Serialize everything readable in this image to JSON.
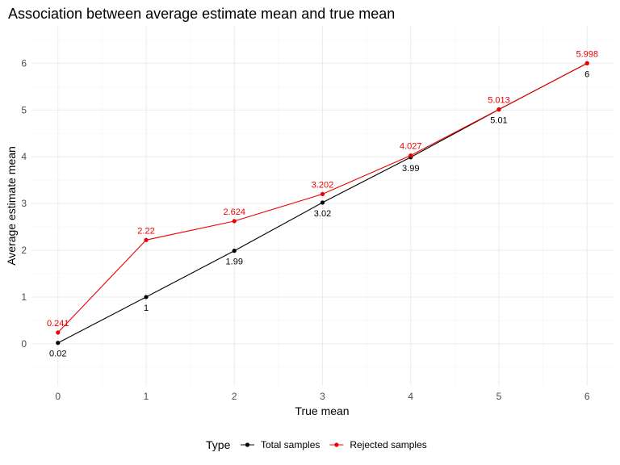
{
  "chart_data": {
    "type": "line",
    "title": "Association between average estimate mean and true mean",
    "xlabel": "True mean",
    "ylabel": "Average estimate mean",
    "x": [
      0,
      1,
      2,
      3,
      4,
      5,
      6
    ],
    "xlim": [
      -0.3,
      6.3
    ],
    "ylim": [
      -0.9,
      6.8
    ],
    "xticks": [
      "0",
      "1",
      "2",
      "3",
      "4",
      "5",
      "6"
    ],
    "yticks": [
      "0",
      "1",
      "2",
      "3",
      "4",
      "5",
      "6"
    ],
    "grid": true,
    "legend": {
      "title": "Type",
      "position": "bottom"
    },
    "series": [
      {
        "name": "Total samples",
        "color": "#000000",
        "values": [
          0.02,
          1,
          1.99,
          3.02,
          3.99,
          5.01,
          6
        ],
        "labels": [
          "0.02",
          "1",
          "1.99",
          "3.02",
          "3.99",
          "5.01",
          "6"
        ],
        "label_position": "below"
      },
      {
        "name": "Rejected samples",
        "color": "#ee0000",
        "values": [
          0.241,
          2.22,
          2.624,
          3.202,
          4.027,
          5.013,
          5.998
        ],
        "labels": [
          "0.241",
          "2.22",
          "2.624",
          "3.202",
          "4.027",
          "5.013",
          "5.998"
        ],
        "label_position": "above"
      }
    ]
  }
}
